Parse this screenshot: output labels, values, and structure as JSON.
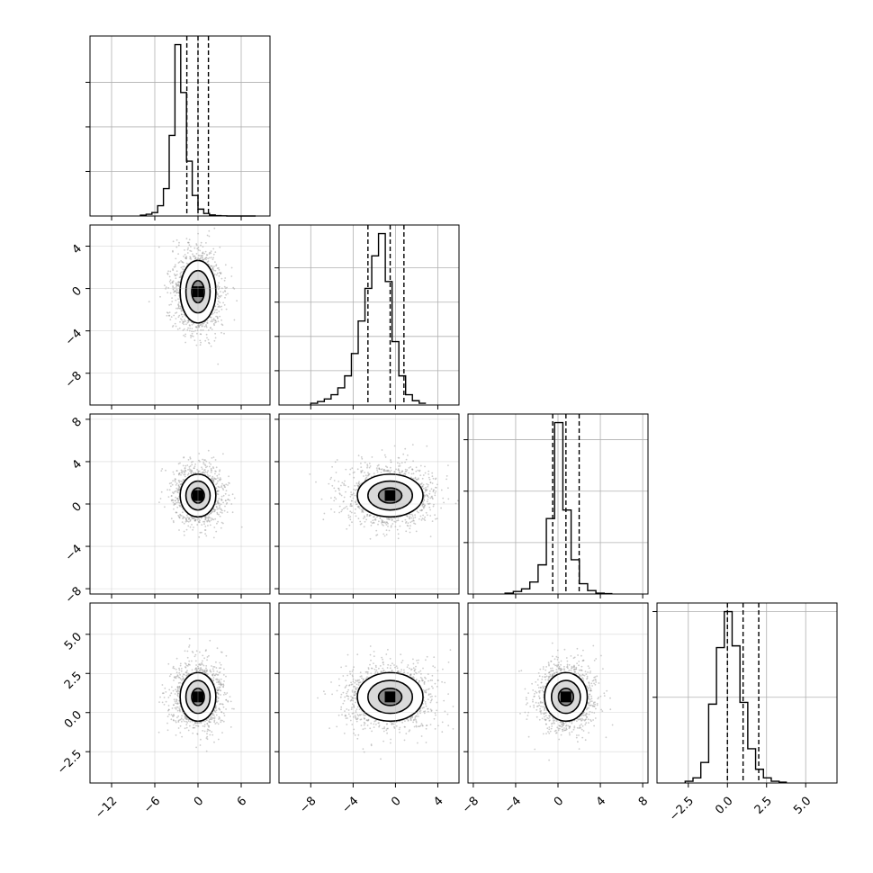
{
  "chart_data": {
    "type": "corner",
    "parameters": 4,
    "quantile_lines": [
      0.16,
      0.5,
      0.84
    ],
    "grid": true,
    "colors": {
      "hist": "#000000",
      "scatter": "#999999",
      "contour": "#000000",
      "grid": "#b0b0b0"
    },
    "variables": [
      {
        "range": [
          -15,
          10
        ],
        "median": 0.0,
        "q16": -1.55,
        "q84": 1.45,
        "ticks": [
          -12,
          -6,
          0,
          6
        ],
        "tick_labels": [
          "−12",
          "−6",
          "0",
          "6"
        ],
        "hist_x0": -8,
        "hist_dx": 0.8,
        "hist_counts": [
          5,
          10,
          20,
          60,
          160,
          470,
          1000,
          720,
          320,
          120,
          40,
          15,
          6,
          2,
          1,
          0,
          0,
          0,
          0,
          0
        ],
        "hist_ylim": [
          0,
          1050
        ],
        "hist_yticks": [
          260,
          520,
          780
        ]
      },
      {
        "range": [
          -11,
          6
        ],
        "median": -0.5,
        "q16": -2.6,
        "q84": 0.8,
        "ticks": [
          -8,
          -4,
          0,
          4
        ],
        "tick_labels": [
          "−8",
          "−4",
          "0",
          "4"
        ],
        "hist_x0": -8,
        "hist_dx": 0.64,
        "hist_counts": [
          10,
          20,
          35,
          60,
          100,
          170,
          300,
          490,
          680,
          870,
          1000,
          720,
          370,
          170,
          60,
          25,
          10
        ],
        "hist_ylim": [
          0,
          1050
        ],
        "hist_yticks": [
          200,
          400,
          600,
          800
        ]
      },
      {
        "range": [
          -8.5,
          8.5
        ],
        "median": 0.75,
        "q16": -0.5,
        "q84": 2.0,
        "ticks": [
          -8,
          -4,
          0,
          4,
          8
        ],
        "tick_labels": [
          "−8",
          "−4",
          "0",
          "4",
          "8"
        ],
        "hist_x0": -5,
        "hist_dx": 0.78,
        "hist_counts": [
          5,
          15,
          30,
          70,
          170,
          440,
          1000,
          490,
          200,
          60,
          20,
          5,
          2
        ],
        "hist_ylim": [
          0,
          1050
        ],
        "hist_yticks": [
          300,
          600,
          900
        ]
      },
      {
        "range": [
          -4.5,
          7
        ],
        "median": 1.0,
        "q16": 0.0,
        "q84": 2.0,
        "ticks": [
          -2.5,
          0.0,
          2.5,
          5.0
        ],
        "tick_labels": [
          "−2.5",
          "0.0",
          "2.5",
          "5.0"
        ],
        "hist_x0": -2.7,
        "hist_dx": 0.5,
        "hist_counts": [
          10,
          30,
          120,
          460,
          790,
          1000,
          800,
          470,
          200,
          80,
          30,
          10,
          5
        ],
        "hist_ylim": [
          0,
          1050
        ],
        "hist_yticks": [
          500,
          1000
        ]
      }
    ],
    "pairs": [
      {
        "row": 1,
        "col": 0,
        "mean": [
          0.0,
          -0.3
        ],
        "sd": [
          1.6,
          1.9
        ]
      },
      {
        "row": 2,
        "col": 0,
        "mean": [
          0.0,
          0.8
        ],
        "sd": [
          1.6,
          1.3
        ]
      },
      {
        "row": 2,
        "col": 1,
        "mean": [
          -0.5,
          0.8
        ],
        "sd": [
          2.0,
          1.3
        ]
      },
      {
        "row": 3,
        "col": 0,
        "mean": [
          0.0,
          1.0
        ],
        "sd": [
          1.6,
          1.0
        ]
      },
      {
        "row": 3,
        "col": 1,
        "mean": [
          -0.5,
          1.0
        ],
        "sd": [
          2.0,
          1.0
        ]
      },
      {
        "row": 3,
        "col": 2,
        "mean": [
          0.75,
          1.0
        ],
        "sd": [
          1.3,
          1.0
        ]
      }
    ]
  }
}
